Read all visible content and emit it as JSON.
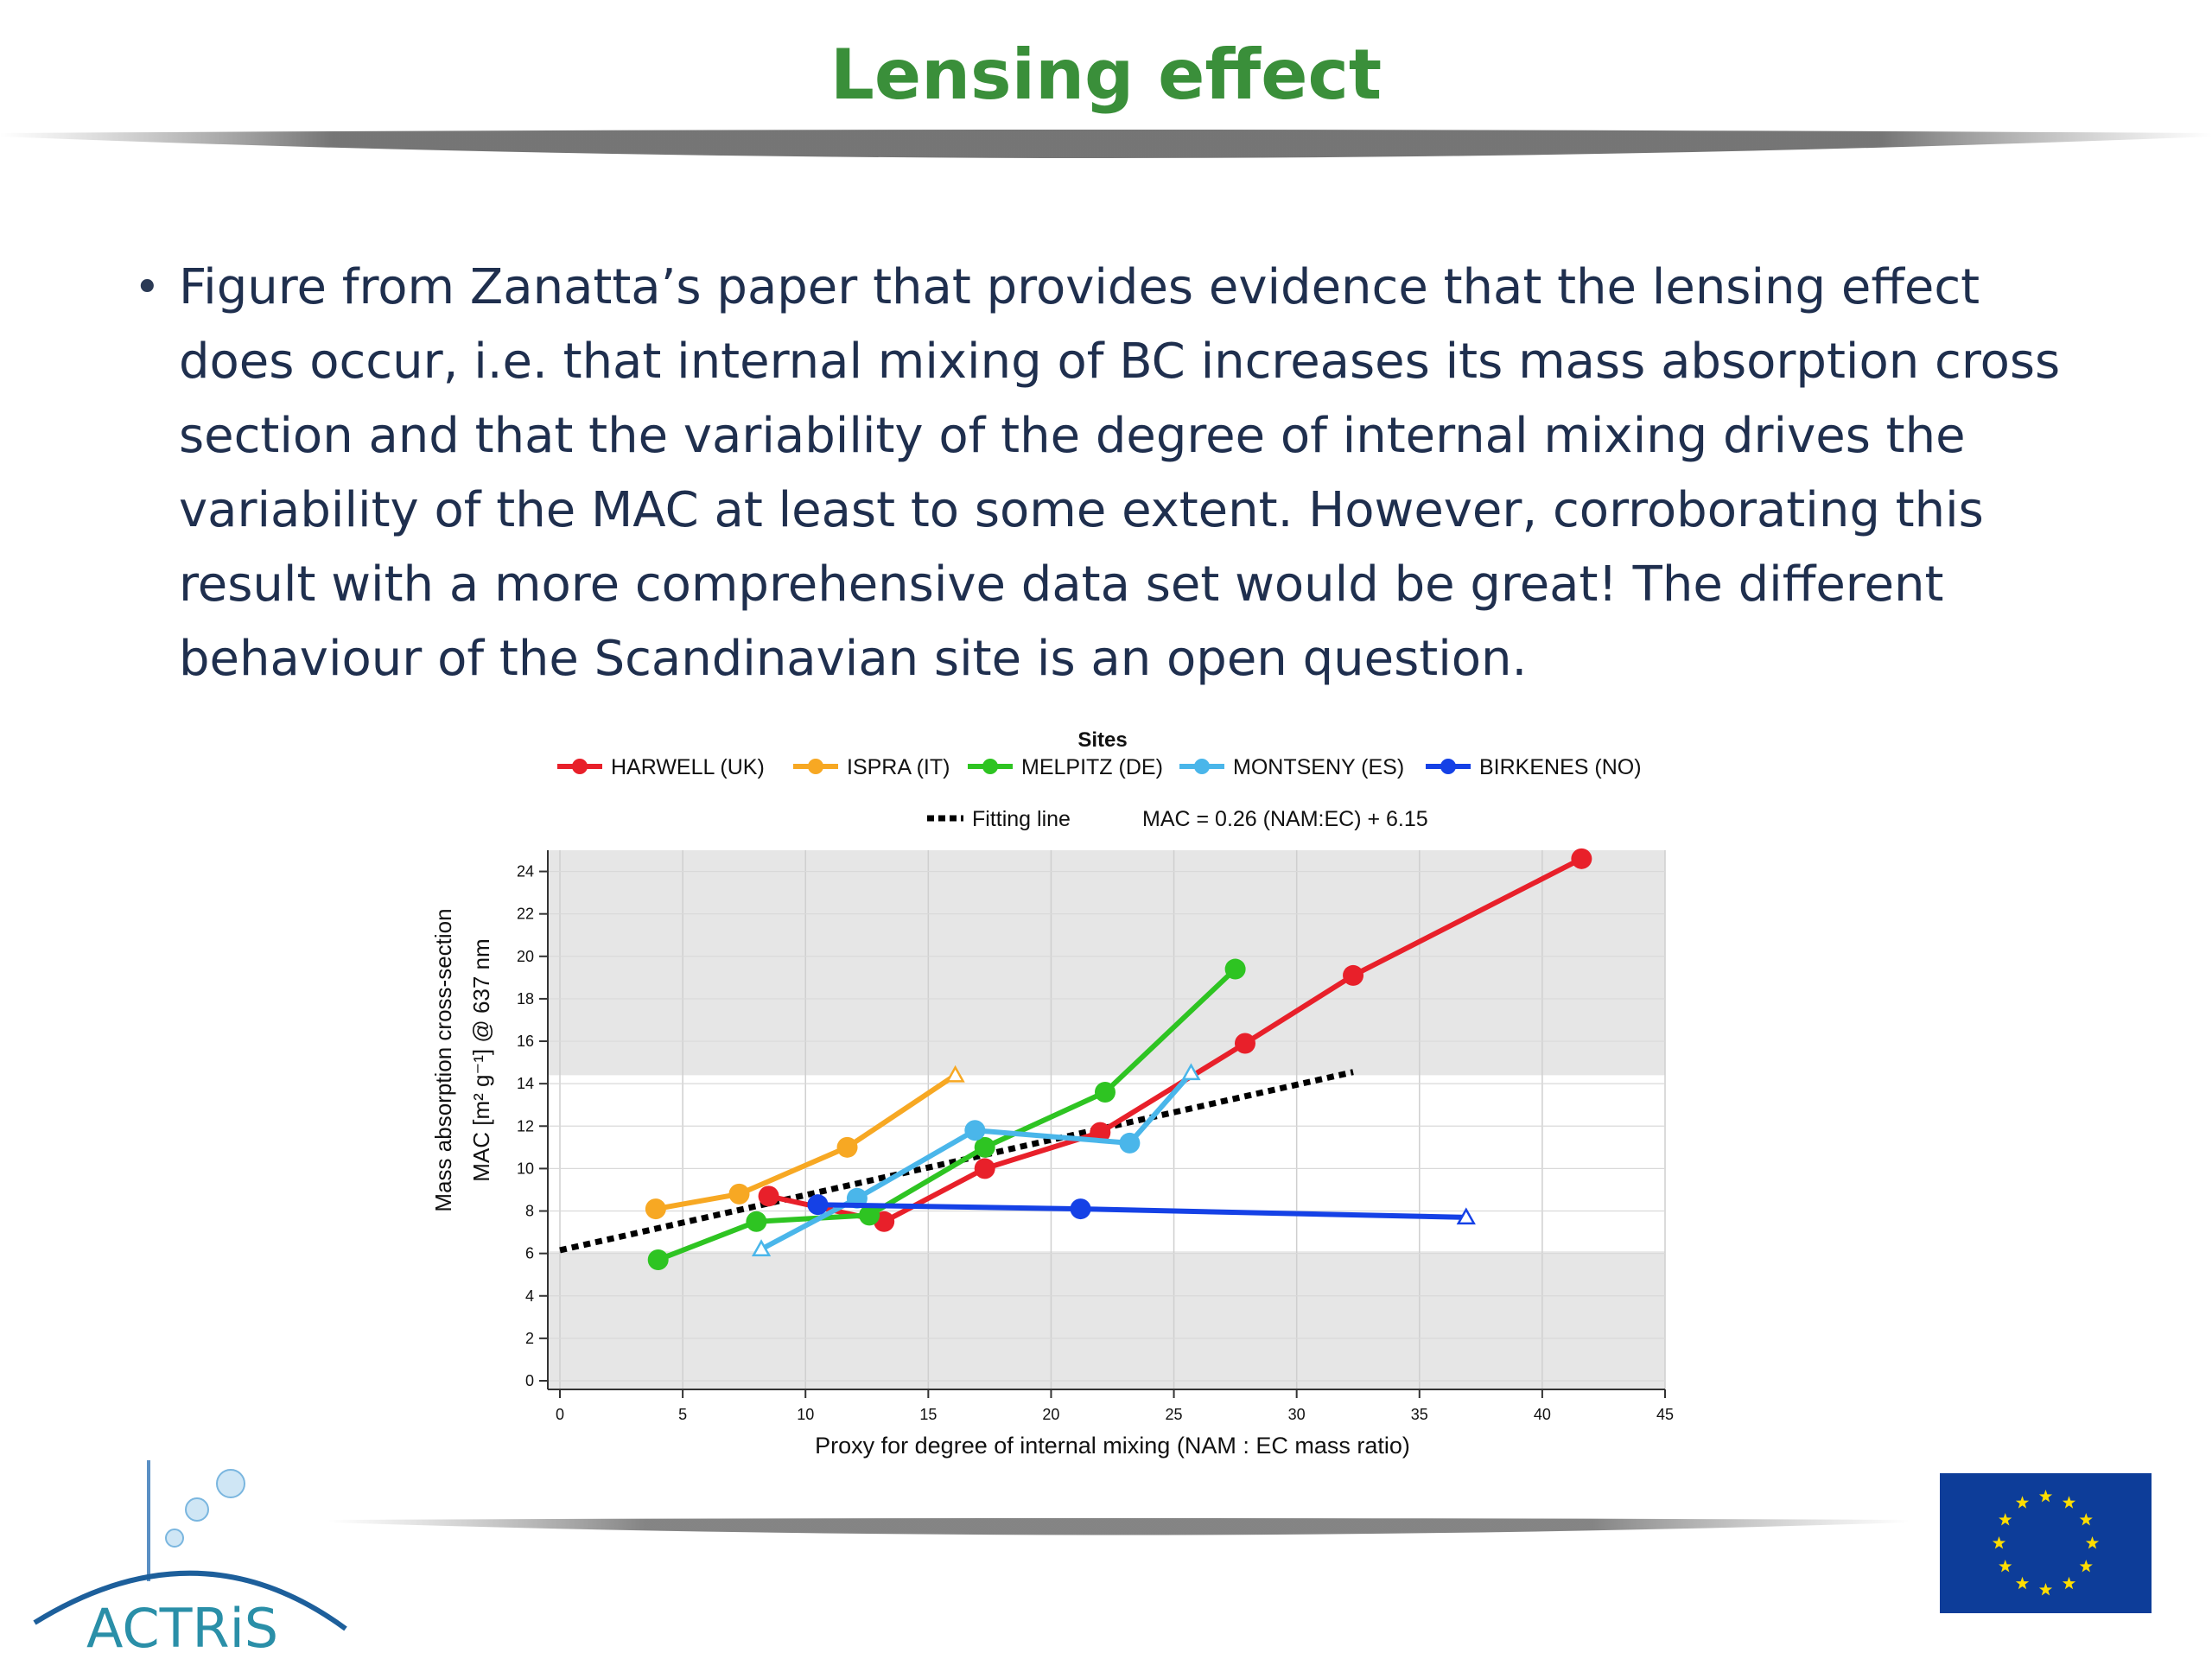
{
  "slide": {
    "title": "Lensing effect",
    "bullet": "Figure from Zanatta’s paper that provides evidence that the lensing effect does occur, i.e. that internal mixing of BC increases its mass absorption cross section and that the variability of the degree of internal mixing drives the variability of the MAC at least to some extent. However, corroborating this result with a more comprehensive data set would be great! The different behaviour of the Scandinavian site is an open question.",
    "logo_text": "ACTRiS"
  },
  "colors": {
    "title": "#3a8f3a",
    "text": "#1f2f4e",
    "band": "#e6e6e6"
  },
  "chart_data": {
    "type": "line",
    "legend_title": "Sites",
    "legend_placement": "top",
    "xlabel": "Proxy for degree of internal mixing (NAM : EC mass ratio)",
    "ylabel_line1": "Mass absorption cross-section",
    "ylabel_line2": "MAC [m² g⁻¹] @ 637 nm",
    "xlim": [
      0,
      45
    ],
    "ylim": [
      0,
      25
    ],
    "x_ticks": [
      0,
      5,
      10,
      15,
      20,
      25,
      30,
      35,
      40,
      45
    ],
    "y_ticks": [
      0,
      2,
      4,
      6,
      8,
      10,
      12,
      14,
      16,
      18,
      20,
      22,
      24
    ],
    "grid": true,
    "bands": [
      {
        "y0": 0,
        "y1": 6.1
      },
      {
        "y0": 14.4,
        "y1": 25
      }
    ],
    "series": [
      {
        "name": "HARWELL (UK)",
        "color": "#e8202a",
        "points": [
          [
            8.5,
            8.7
          ],
          [
            13.2,
            7.5
          ],
          [
            17.3,
            10.0
          ],
          [
            22.0,
            11.7
          ],
          [
            27.9,
            15.9
          ],
          [
            32.3,
            19.1
          ],
          [
            41.6,
            24.6
          ]
        ]
      },
      {
        "name": "ISPRA (IT)",
        "color": "#f7a823",
        "points": [
          [
            3.9,
            8.1
          ],
          [
            7.3,
            8.8
          ],
          [
            11.7,
            11.0
          ]
        ],
        "open_end": [
          16.1,
          14.4
        ]
      },
      {
        "name": "MELPITZ (DE)",
        "color": "#2ec422",
        "points": [
          [
            4.0,
            5.7
          ],
          [
            8.0,
            7.5
          ],
          [
            12.6,
            7.8
          ],
          [
            17.3,
            11.0
          ],
          [
            22.2,
            13.6
          ],
          [
            27.5,
            19.4
          ]
        ]
      },
      {
        "name": "MONTSENY (ES)",
        "color": "#4ab6ea",
        "points": [
          [
            12.1,
            8.6
          ],
          [
            16.9,
            11.8
          ],
          [
            23.2,
            11.2
          ]
        ],
        "open_start": [
          8.2,
          6.2
        ],
        "open_end": [
          25.7,
          14.5
        ]
      },
      {
        "name": "BIRKENES (NO)",
        "color": "#1541e6",
        "points": [
          [
            10.5,
            8.3
          ],
          [
            21.2,
            8.1
          ]
        ],
        "open_end": [
          36.9,
          7.7
        ]
      }
    ],
    "fit": {
      "name": "Fitting line",
      "equation": "MAC = 0.26 (NAM:EC) + 6.15",
      "slope": 0.26,
      "intercept": 6.15,
      "x_range": [
        0,
        32.3
      ]
    }
  }
}
